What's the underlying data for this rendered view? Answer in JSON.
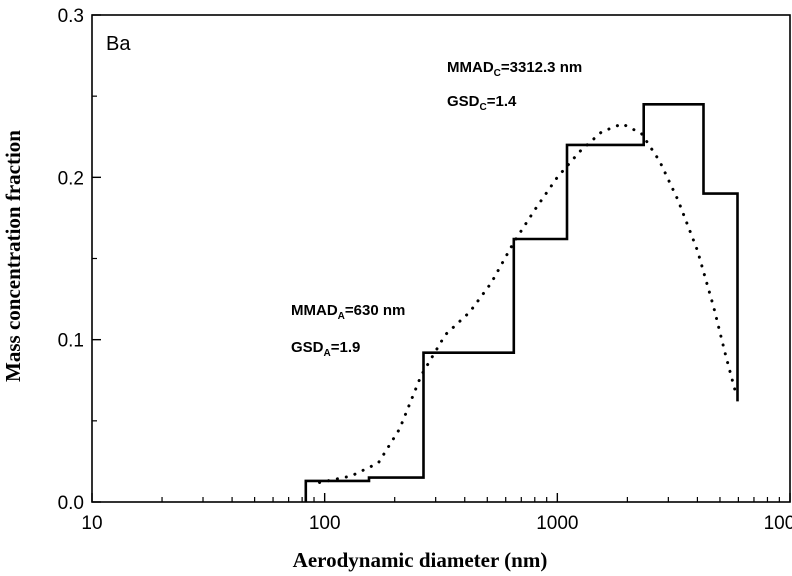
{
  "chart_data": {
    "type": "line",
    "title": "",
    "xlabel": "Aerodynamic diameter (nm)",
    "ylabel": "Mass concentration fraction",
    "xscale": "log",
    "xlim": [
      10,
      10000
    ],
    "ylim": [
      0,
      0.3
    ],
    "x_ticks": [
      10,
      100,
      1000,
      10000
    ],
    "x_tick_labels": [
      "10",
      "100",
      "1000",
      "10000"
    ],
    "y_ticks": [
      0,
      0.1,
      0.2,
      0.3
    ],
    "y_tick_labels": [
      "0.0",
      "0.1",
      "0.2",
      "0.3"
    ],
    "grid": false,
    "panel_label": "Ba",
    "series": [
      {
        "style": "solid-step",
        "color": "#000000",
        "points": [
          [
            83,
            0
          ],
          [
            83,
            0.013
          ],
          [
            155,
            0.013
          ],
          [
            155,
            0.015
          ],
          [
            266,
            0.015
          ],
          [
            266,
            0.092
          ],
          [
            650,
            0.092
          ],
          [
            650,
            0.162
          ],
          [
            1100,
            0.162
          ],
          [
            1100,
            0.22
          ],
          [
            2350,
            0.22
          ],
          [
            2350,
            0.245
          ],
          [
            4250,
            0.245
          ],
          [
            4250,
            0.19
          ],
          [
            5950,
            0.19
          ],
          [
            5950,
            0.062
          ]
        ]
      },
      {
        "style": "dotted",
        "color": "#000000",
        "points": [
          [
            95,
            0.012
          ],
          [
            130,
            0.016
          ],
          [
            170,
            0.024
          ],
          [
            210,
            0.045
          ],
          [
            260,
            0.078
          ],
          [
            330,
            0.103
          ],
          [
            420,
            0.117
          ],
          [
            520,
            0.135
          ],
          [
            650,
            0.16
          ],
          [
            800,
            0.18
          ],
          [
            1000,
            0.2
          ],
          [
            1250,
            0.216
          ],
          [
            1550,
            0.228
          ],
          [
            1900,
            0.233
          ],
          [
            2300,
            0.227
          ],
          [
            2750,
            0.21
          ],
          [
            3300,
            0.186
          ],
          [
            4000,
            0.155
          ],
          [
            4700,
            0.12
          ],
          [
            5300,
            0.09
          ],
          [
            5900,
            0.065
          ]
        ]
      }
    ],
    "annotations": [
      {
        "main": "MMAD",
        "sub": "C",
        "rest": "=3312.3 nm"
      },
      {
        "main": "GSD",
        "sub": "C",
        "rest": "=1.4"
      },
      {
        "main": "MMAD",
        "sub": "A",
        "rest": "=630 nm"
      },
      {
        "main": "GSD",
        "sub": "A",
        "rest": "=1.9"
      }
    ]
  }
}
